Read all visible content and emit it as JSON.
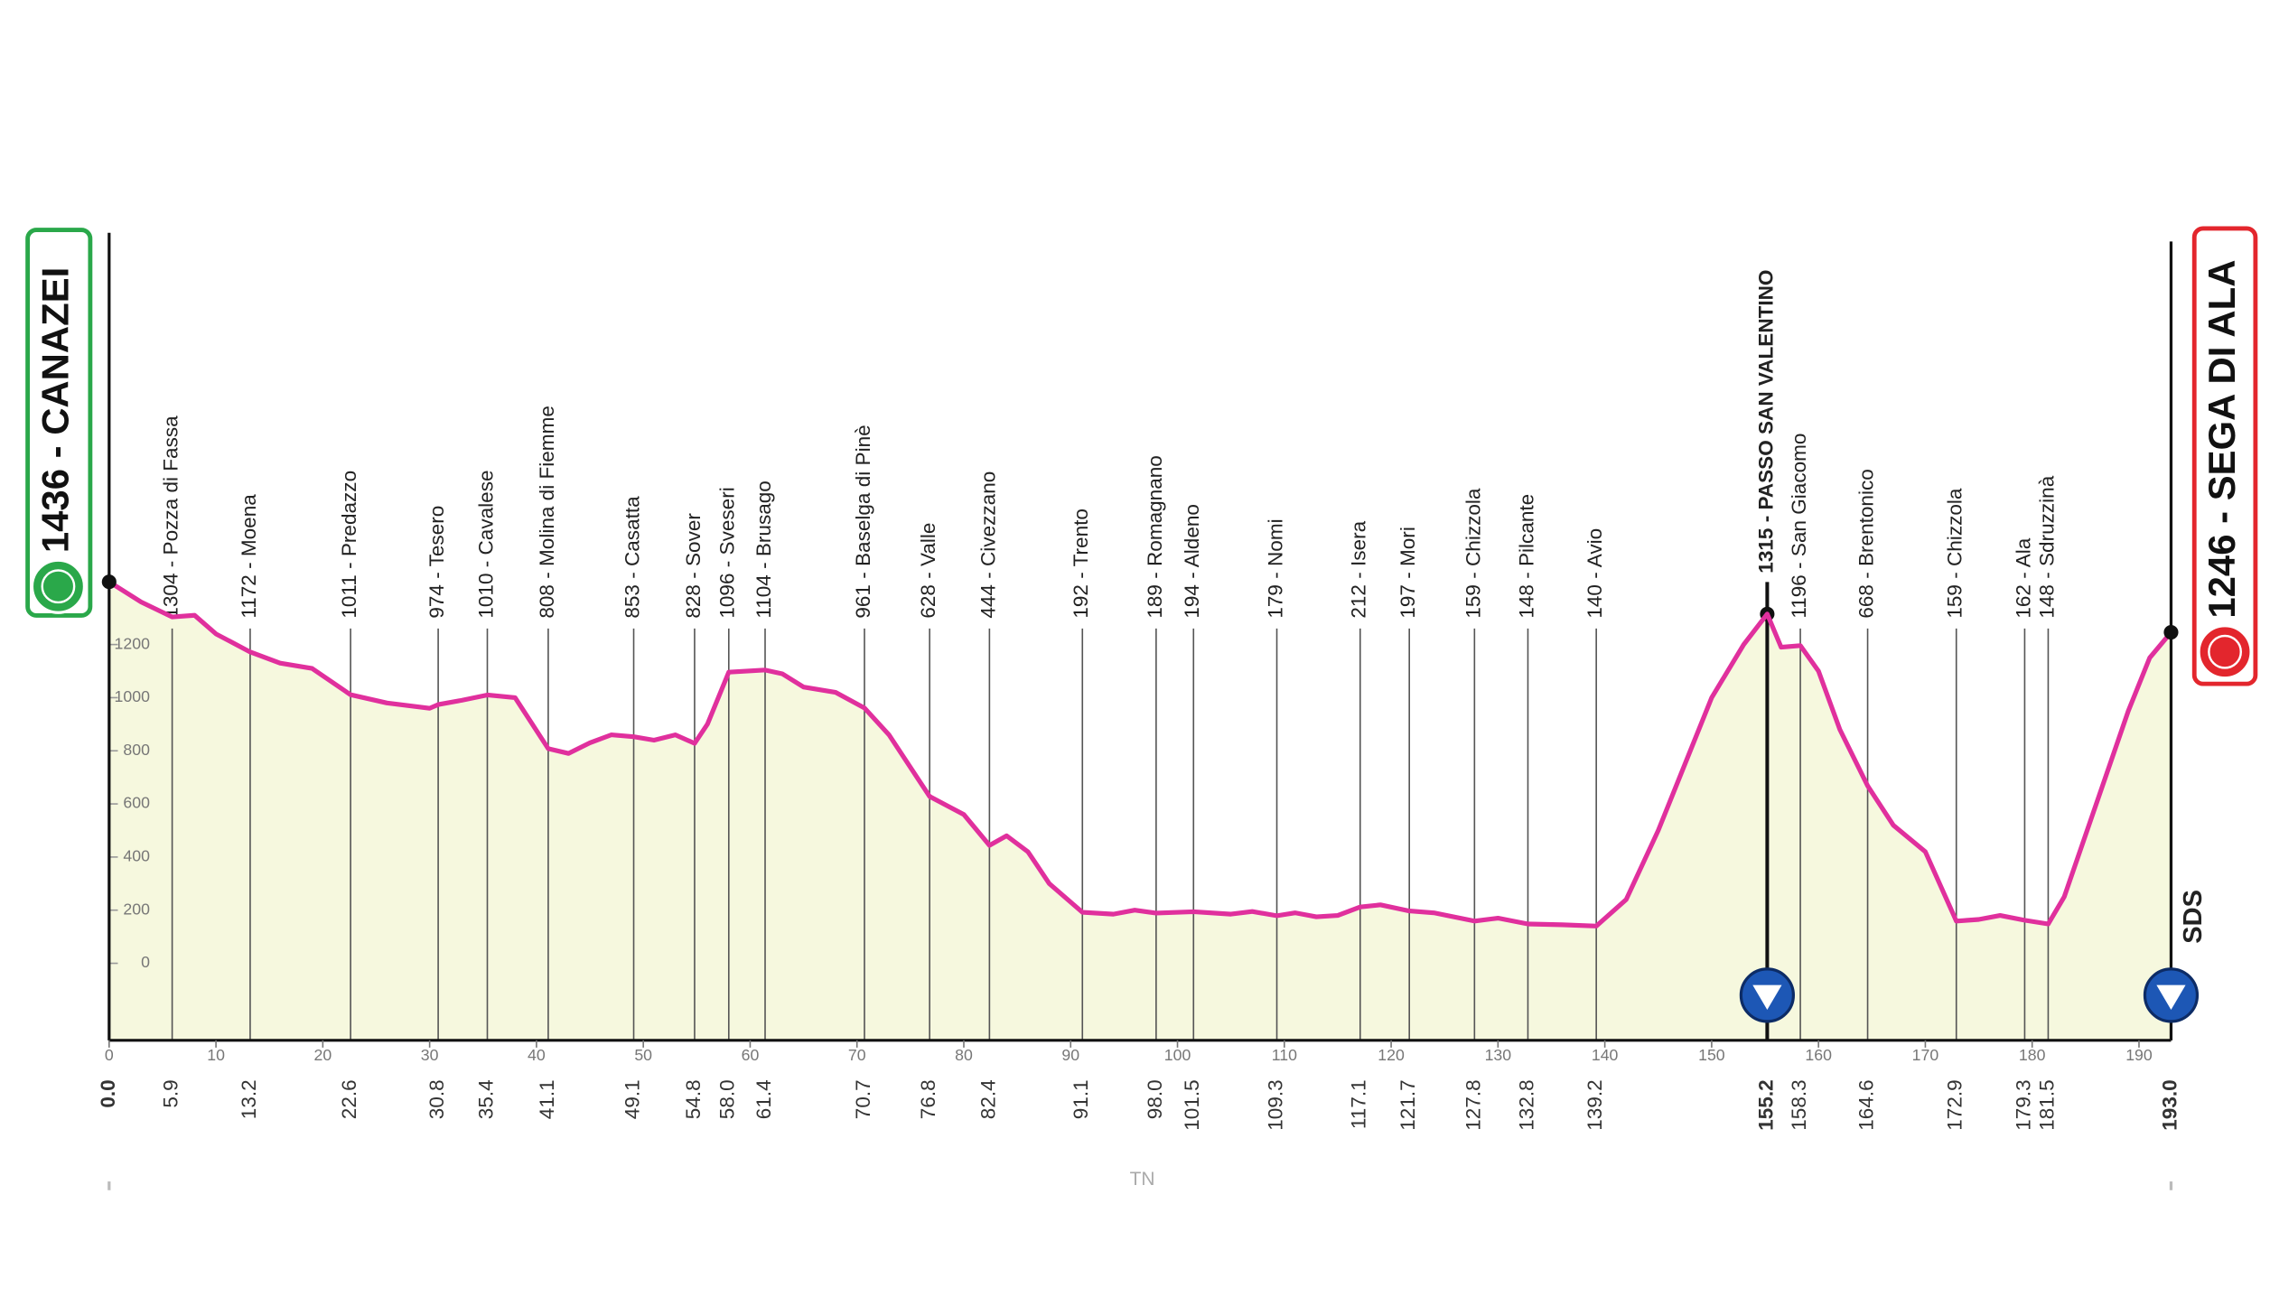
{
  "chart_data": {
    "type": "area",
    "color": "#e0309d",
    "fill": "#f6f8de",
    "x": [
      0,
      3,
      5.9,
      8,
      10,
      13.2,
      16,
      19,
      22.6,
      26,
      30,
      30.8,
      33,
      35.4,
      38,
      41.1,
      43,
      45,
      47,
      49.1,
      51,
      53,
      54.8,
      56,
      58,
      61.4,
      63,
      65,
      68,
      70.7,
      73,
      76.8,
      80,
      82.4,
      84,
      86,
      88,
      91.1,
      94,
      96,
      98,
      101.5,
      105,
      107,
      109.3,
      111,
      113,
      115,
      117.1,
      119,
      121.7,
      124,
      127.8,
      130,
      132.8,
      136,
      139.2,
      142,
      145,
      148,
      150,
      153,
      155.2,
      156.5,
      158.3,
      160,
      162,
      164.6,
      167,
      170,
      172.9,
      175,
      177,
      179.3,
      181.5,
      183,
      186,
      189,
      191,
      193
    ],
    "values": [
      1436,
      1360,
      1304,
      1310,
      1240,
      1172,
      1130,
      1110,
      1011,
      980,
      960,
      974,
      990,
      1010,
      1000,
      808,
      790,
      830,
      860,
      853,
      840,
      860,
      828,
      900,
      1096,
      1104,
      1090,
      1040,
      1020,
      961,
      860,
      628,
      560,
      444,
      480,
      420,
      300,
      192,
      185,
      200,
      189,
      194,
      185,
      195,
      179,
      190,
      175,
      180,
      212,
      220,
      197,
      190,
      159,
      170,
      148,
      145,
      140,
      240,
      500,
      800,
      1000,
      1200,
      1315,
      1190,
      1196,
      1100,
      880,
      668,
      520,
      420,
      159,
      165,
      180,
      162,
      148,
      250,
      600,
      950,
      1150,
      1246
    ],
    "xlim": [
      0,
      193
    ],
    "ylim": [
      -290,
      2750
    ],
    "xticks": [
      0,
      10,
      20,
      30,
      40,
      50,
      60,
      70,
      80,
      90,
      100,
      110,
      120,
      130,
      140,
      150,
      160,
      170,
      180,
      190
    ],
    "yticks": [
      0,
      200,
      400,
      600,
      800,
      1000,
      1200
    ],
    "start": {
      "label": "1436 - CANAZEI",
      "km": {
        "value": 0,
        "label": "0.0"
      }
    },
    "finish": {
      "label": "1246 - SEGA DI ALA",
      "km": {
        "value": 193,
        "label": "193.0"
      }
    },
    "waypoints": [
      {
        "km": 5.9,
        "label": "1304 - Pozza di Fassa"
      },
      {
        "km": 13.2,
        "label": "1172 - Moena"
      },
      {
        "km": 22.6,
        "label": "1011 - Predazzo"
      },
      {
        "km": 30.8,
        "label": "974 - Tesero"
      },
      {
        "km": 35.4,
        "label": "1010 - Cavalese"
      },
      {
        "km": 41.1,
        "label": "808 - Molina di Fiemme"
      },
      {
        "km": 49.1,
        "label": "853 - Casatta"
      },
      {
        "km": 54.8,
        "label": "828 - Sover"
      },
      {
        "km": {
          "value": 58,
          "label": "58.0"
        },
        "label": "1096 - Sveseri"
      },
      {
        "km": 61.4,
        "label": "1104 - Brusago"
      },
      {
        "km": 70.7,
        "label": "961 - Baselga di Pinè"
      },
      {
        "km": 76.8,
        "label": "628 - Valle"
      },
      {
        "km": 82.4,
        "label": "444 - Civezzano"
      },
      {
        "km": 91.1,
        "label": "192 - Trento"
      },
      {
        "km": {
          "value": 98,
          "label": "98.0"
        },
        "label": "189 - Romagnano"
      },
      {
        "km": 101.5,
        "label": "194 - Aldeno"
      },
      {
        "km": 109.3,
        "label": "179 - Nomi"
      },
      {
        "km": 117.1,
        "label": "212 - Isera"
      },
      {
        "km": 121.7,
        "label": "197 - Mori"
      },
      {
        "km": 127.8,
        "label": "159 - Chizzola"
      },
      {
        "km": 132.8,
        "label": "148 - Pilcante"
      },
      {
        "km": 139.2,
        "label": "140 - Avio"
      },
      {
        "km": 155.2,
        "label": "1315 - PASSO SAN VALENTINO",
        "bold": true
      },
      {
        "km": 158.3,
        "label": "1196 - San Giacomo"
      },
      {
        "km": 164.6,
        "label": "668 - Brentonico"
      },
      {
        "km": 172.9,
        "label": "159 - Chizzola"
      },
      {
        "km": 179.3,
        "label": "162 - Ala"
      },
      {
        "km": 181.5,
        "label": "148 - Sdruzzinà"
      }
    ],
    "region": "TN",
    "logo": "SDS"
  }
}
